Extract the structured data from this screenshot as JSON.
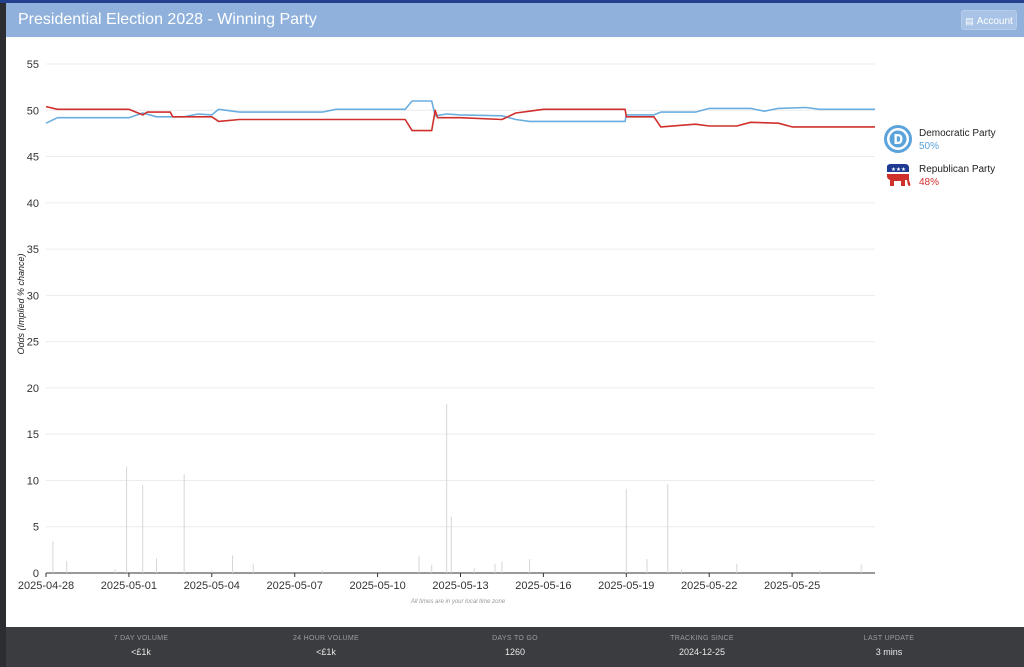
{
  "header": {
    "title": "Presidential Election 2028 - Winning Party",
    "account_label": "Account"
  },
  "legend": [
    {
      "name": "Democratic Party",
      "pct": "50%",
      "color": "#6aaee0",
      "icon": "democratic-logo-icon"
    },
    {
      "name": "Republican Party",
      "pct": "48%",
      "color": "#d0302c",
      "icon": "republican-elephant-icon"
    }
  ],
  "chart_data": {
    "type": "line",
    "title": "Presidential Election 2028 - Winning Party",
    "ylabel": "Odds (Implied % chance)",
    "xlabel": "",
    "ylim": [
      0,
      55
    ],
    "y_ticks": [
      0,
      5,
      10,
      15,
      20,
      25,
      30,
      35,
      40,
      45,
      50,
      55
    ],
    "x_range": [
      "2025-04-28",
      "2025-05-28"
    ],
    "x_ticks": [
      "2025-04-28",
      "2025-05-01",
      "2025-05-04",
      "2025-05-07",
      "2025-05-10",
      "2025-05-13",
      "2025-05-16",
      "2025-05-19",
      "2025-05-22",
      "2025-05-25"
    ],
    "note": "All times are in your local time zone",
    "grid": true,
    "legend_position": "right",
    "series": [
      {
        "name": "Democratic Party",
        "color": "#6aaee0",
        "points": [
          [
            "2025-04-28T00:00",
            48.6
          ],
          [
            "2025-04-28T10:00",
            49.2
          ],
          [
            "2025-05-01T00:00",
            49.2
          ],
          [
            "2025-05-01T12:00",
            49.7
          ],
          [
            "2025-05-02T00:00",
            49.3
          ],
          [
            "2025-05-03T00:00",
            49.3
          ],
          [
            "2025-05-03T12:00",
            49.6
          ],
          [
            "2025-05-04T00:00",
            49.5
          ],
          [
            "2025-05-04T06:00",
            50.1
          ],
          [
            "2025-05-05T00:00",
            49.8
          ],
          [
            "2025-05-08T00:00",
            49.8
          ],
          [
            "2025-05-08T12:00",
            50.1
          ],
          [
            "2025-05-11T00:00",
            50.1
          ],
          [
            "2025-05-11T06:00",
            51.0
          ],
          [
            "2025-05-11T23:00",
            51.0
          ],
          [
            "2025-05-12T02:00",
            49.4
          ],
          [
            "2025-05-12T12:00",
            49.6
          ],
          [
            "2025-05-13T00:00",
            49.5
          ],
          [
            "2025-05-14T12:00",
            49.4
          ],
          [
            "2025-05-15T00:00",
            49.0
          ],
          [
            "2025-05-15T12:00",
            48.8
          ],
          [
            "2025-05-18T23:00",
            48.8
          ],
          [
            "2025-05-19T00:00",
            49.5
          ],
          [
            "2025-05-20T00:00",
            49.5
          ],
          [
            "2025-05-20T06:00",
            49.8
          ],
          [
            "2025-05-21T12:00",
            49.8
          ],
          [
            "2025-05-22T00:00",
            50.2
          ],
          [
            "2025-05-23T12:00",
            50.2
          ],
          [
            "2025-05-24T00:00",
            49.9
          ],
          [
            "2025-05-24T12:00",
            50.2
          ],
          [
            "2025-05-25T12:00",
            50.3
          ],
          [
            "2025-05-26T00:00",
            50.1
          ],
          [
            "2025-05-28T00:00",
            50.1
          ]
        ]
      },
      {
        "name": "Republican Party",
        "color": "#d0302c",
        "points": [
          [
            "2025-04-28T00:00",
            50.4
          ],
          [
            "2025-04-28T10:00",
            50.1
          ],
          [
            "2025-05-01T00:00",
            50.1
          ],
          [
            "2025-05-01T12:00",
            49.5
          ],
          [
            "2025-05-01T16:00",
            49.8
          ],
          [
            "2025-05-02T12:00",
            49.8
          ],
          [
            "2025-05-02T14:00",
            49.3
          ],
          [
            "2025-05-04T00:00",
            49.3
          ],
          [
            "2025-05-04T06:00",
            48.8
          ],
          [
            "2025-05-05T00:00",
            49.0
          ],
          [
            "2025-05-11T00:00",
            49.0
          ],
          [
            "2025-05-11T06:00",
            47.8
          ],
          [
            "2025-05-11T23:00",
            47.8
          ],
          [
            "2025-05-12T02:00",
            50.0
          ],
          [
            "2025-05-12T04:00",
            49.2
          ],
          [
            "2025-05-13T00:00",
            49.2
          ],
          [
            "2025-05-14T12:00",
            49.0
          ],
          [
            "2025-05-15T00:00",
            49.7
          ],
          [
            "2025-05-15T12:00",
            49.9
          ],
          [
            "2025-05-16T00:00",
            50.1
          ],
          [
            "2025-05-18T23:00",
            50.1
          ],
          [
            "2025-05-19T00:00",
            49.3
          ],
          [
            "2025-05-20T00:00",
            49.3
          ],
          [
            "2025-05-20T06:00",
            48.2
          ],
          [
            "2025-05-21T12:00",
            48.5
          ],
          [
            "2025-05-22T00:00",
            48.3
          ],
          [
            "2025-05-23T00:00",
            48.3
          ],
          [
            "2025-05-23T12:00",
            48.7
          ],
          [
            "2025-05-24T12:00",
            48.6
          ],
          [
            "2025-05-25T00:00",
            48.2
          ],
          [
            "2025-05-28T00:00",
            48.2
          ]
        ]
      }
    ],
    "volume_bars": [
      [
        "2025-04-28T06:00",
        3.4
      ],
      [
        "2025-04-28T18:00",
        1.3
      ],
      [
        "2025-04-30T12:00",
        0.4
      ],
      [
        "2025-04-30T22:00",
        11.5
      ],
      [
        "2025-05-01T12:00",
        9.5
      ],
      [
        "2025-05-02T00:00",
        1.6
      ],
      [
        "2025-05-03T00:00",
        10.7
      ],
      [
        "2025-05-04T00:00",
        0.3
      ],
      [
        "2025-05-04T18:00",
        1.9
      ],
      [
        "2025-05-05T12:00",
        1.0
      ],
      [
        "2025-05-08T00:00",
        0.3
      ],
      [
        "2025-05-11T12:00",
        1.8
      ],
      [
        "2025-05-11T23:00",
        0.9
      ],
      [
        "2025-05-12T12:00",
        18.3
      ],
      [
        "2025-05-12T16:00",
        6.1
      ],
      [
        "2025-05-13T12:00",
        0.5
      ],
      [
        "2025-05-14T06:00",
        1.0
      ],
      [
        "2025-05-14T12:00",
        1.2
      ],
      [
        "2025-05-15T12:00",
        1.5
      ],
      [
        "2025-05-19T00:00",
        9.1
      ],
      [
        "2025-05-19T18:00",
        1.5
      ],
      [
        "2025-05-20T12:00",
        9.6
      ],
      [
        "2025-05-21T00:00",
        0.4
      ],
      [
        "2025-05-23T00:00",
        1.0
      ],
      [
        "2025-05-26T00:00",
        0.3
      ],
      [
        "2025-05-27T12:00",
        0.9
      ]
    ]
  },
  "footer": {
    "stats": [
      {
        "label": "7 DAY VOLUME",
        "value": "<£1k"
      },
      {
        "label": "24 HOUR VOLUME",
        "value": "<£1k"
      },
      {
        "label": "DAYS TO GO",
        "value": "1260"
      },
      {
        "label": "TRACKING SINCE",
        "value": "2024-12-25"
      },
      {
        "label": "LAST UPDATE",
        "value": "3 mins"
      }
    ]
  }
}
